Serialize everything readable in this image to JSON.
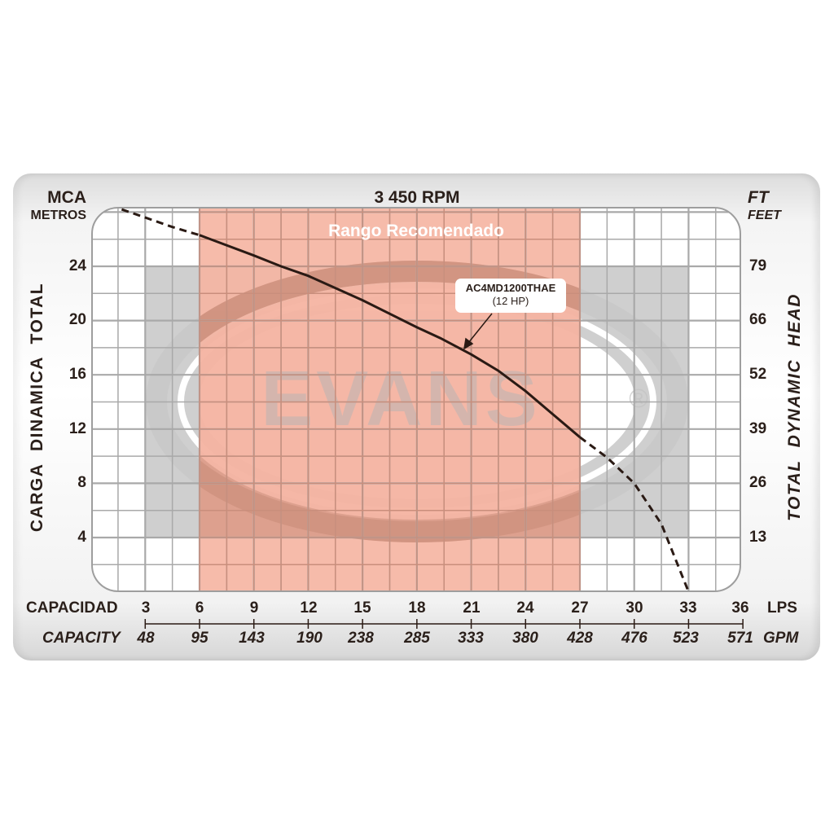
{
  "chart_data": {
    "type": "line",
    "title": "3 450 RPM",
    "subtitle": "Rango Recomendado",
    "xlabel": "CAPACIDAD / CAPACITY",
    "x_units_primary": "LPS",
    "x_units_secondary": "GPM",
    "ylabel_left": "CARGA DINAMICA TOTAL",
    "ylabel_right": "TOTAL DYNAMIC HEAD",
    "y_units_left": "MCA METROS",
    "y_units_right": "FT FEET",
    "x_ticks_lps": [
      3,
      6,
      9,
      12,
      15,
      18,
      21,
      24,
      27,
      30,
      33,
      36
    ],
    "x_ticks_gpm": [
      48,
      95,
      143,
      190,
      238,
      285,
      333,
      380,
      428,
      476,
      523,
      571
    ],
    "y_ticks_m": [
      4,
      8,
      12,
      16,
      20,
      24
    ],
    "y_ticks_ft": [
      13,
      26,
      39,
      52,
      66,
      79
    ],
    "xlim": [
      1.5,
      37.5
    ],
    "ylim": [
      0,
      28.3
    ],
    "grid": true,
    "recommended_range_lps": [
      6,
      27
    ],
    "series": [
      {
        "name": "AC4MD1200THAE (12 HP)",
        "style": "dashed",
        "x": [
          1.7,
          3,
          4.5,
          6
        ],
        "y": [
          28.2,
          27.6,
          26.9,
          26.3
        ]
      },
      {
        "name": "AC4MD1200THAE (12 HP)",
        "style": "solid",
        "x": [
          6,
          9,
          10.5,
          12,
          15,
          18,
          19.3,
          21,
          22.5,
          24,
          25.5,
          27
        ],
        "y": [
          26.3,
          24.8,
          24.0,
          23.3,
          21.5,
          19.5,
          18.7,
          17.5,
          16.3,
          14.8,
          13.1,
          11.4
        ]
      },
      {
        "name": "AC4MD1200THAE (12 HP)",
        "style": "dashed",
        "x": [
          27,
          28.5,
          30,
          31.5,
          33
        ],
        "y": [
          11.4,
          9.9,
          8.0,
          5.0,
          0
        ]
      }
    ],
    "annotations": [
      {
        "text": "AC4MD1200THAE",
        "subtext": "(12 HP)",
        "points_to": [
          21,
          17.9
        ]
      }
    ]
  },
  "labels": {
    "title": "3 450 RPM",
    "left_unit_1": "MCA",
    "left_unit_2": "METROS",
    "right_unit_1": "FT",
    "right_unit_2": "FEET",
    "left_axis_title": "CARGA DINAMICA TOTAL",
    "right_axis_title": "TOTAL DYNAMIC HEAD",
    "range_label": "Rango Recomendado",
    "model": "AC4MD1200THAE",
    "power": "(12 HP)",
    "x_title_es": "CAPACIDAD",
    "x_title_en": "CAPACITY",
    "x_unit_lps": "LPS",
    "x_unit_gpm": "GPM",
    "watermark": "EVANS",
    "watermark_reg": "®"
  },
  "y_left": [
    "24",
    "20",
    "16",
    "12",
    "8",
    "4"
  ],
  "y_right": [
    "79",
    "66",
    "52",
    "39",
    "26",
    "13"
  ],
  "x_lps": [
    "3",
    "6",
    "9",
    "12",
    "15",
    "18",
    "21",
    "24",
    "27",
    "30",
    "33",
    "36"
  ],
  "x_gpm": [
    "48",
    "95",
    "143",
    "190",
    "238",
    "285",
    "333",
    "380",
    "428",
    "476",
    "523",
    "571"
  ],
  "colors": {
    "range_fill": "#f5b5a3",
    "watermark_grey": "#c8c8c8",
    "grid_line": "#a9a9a9",
    "curve": "#2a1a14",
    "text": "#2a1f1a"
  }
}
